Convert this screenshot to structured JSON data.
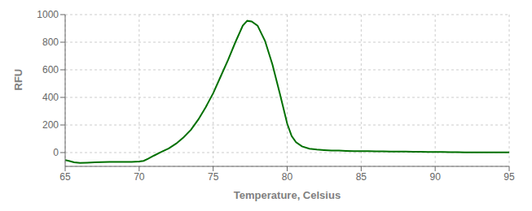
{
  "chart_data": {
    "type": "line",
    "xlabel": "Temperature, Celsius",
    "ylabel": "RFU",
    "x": [
      65.0,
      65.3,
      65.6,
      66.0,
      66.5,
      67.0,
      67.5,
      68.0,
      68.5,
      69.0,
      69.5,
      70.0,
      70.3,
      70.6,
      71.0,
      71.5,
      72.0,
      72.5,
      73.0,
      73.5,
      74.0,
      74.5,
      75.0,
      75.5,
      76.0,
      76.5,
      77.0,
      77.3,
      77.6,
      78.0,
      78.5,
      79.0,
      79.5,
      80.0,
      80.3,
      80.6,
      81.0,
      81.5,
      82.0,
      82.5,
      83.0,
      83.5,
      84.0,
      84.5,
      85.0,
      85.5,
      86.0,
      86.5,
      87.0,
      87.5,
      88.0,
      88.5,
      89.0,
      89.5,
      90.0,
      90.5,
      91.0,
      91.5,
      92.0,
      92.5,
      93.0,
      93.5,
      94.0,
      94.5,
      95.0
    ],
    "values": [
      -55,
      -62,
      -70,
      -75,
      -73,
      -70,
      -69,
      -68,
      -68,
      -68,
      -67,
      -65,
      -60,
      -45,
      -22,
      5,
      30,
      65,
      110,
      165,
      240,
      330,
      430,
      550,
      670,
      800,
      920,
      955,
      950,
      920,
      810,
      640,
      430,
      210,
      120,
      75,
      45,
      28,
      22,
      18,
      15,
      14,
      12,
      11,
      10,
      10,
      9,
      9,
      8,
      8,
      7,
      6,
      6,
      5,
      5,
      4,
      3,
      3,
      2,
      2,
      2,
      1,
      1,
      1,
      1
    ],
    "color": "#007000",
    "xlim": [
      65,
      95
    ],
    "ylim": [
      -100,
      1000
    ],
    "xticks": [
      65,
      70,
      75,
      80,
      85,
      90,
      95
    ],
    "yticks": [
      0,
      200,
      400,
      600,
      800,
      1000
    ],
    "grid": true
  }
}
